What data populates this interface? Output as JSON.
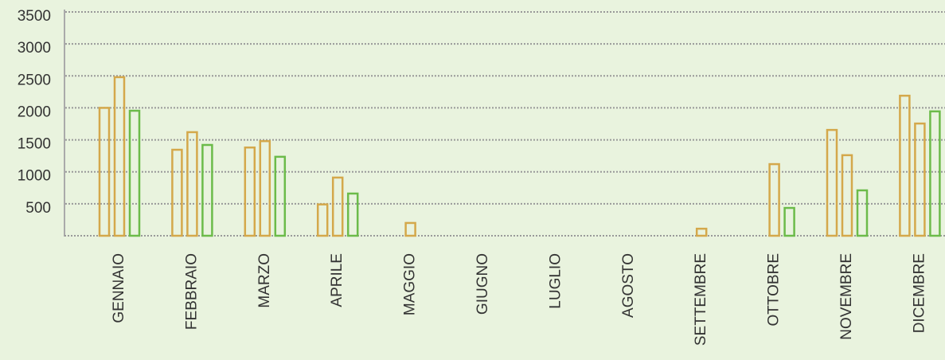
{
  "chart_data": {
    "type": "bar",
    "categories": [
      "GENNAIO",
      "FEBBRAIO",
      "MARZO",
      "APRILE",
      "MAGGIO",
      "GIUGNO",
      "LUGLIO",
      "AGOSTO",
      "SETTEMBRE",
      "OTTOBRE",
      "NOVEMBRE",
      "DICEMBRE"
    ],
    "series": [
      {
        "color": "#d4a84b",
        "values": [
          2000,
          1345,
          1380,
          490,
          null,
          null,
          null,
          null,
          null,
          null,
          1655,
          2190
        ]
      },
      {
        "color": "#d4a84b",
        "values": [
          2480,
          1620,
          1480,
          910,
          200,
          null,
          null,
          null,
          110,
          1120,
          1260,
          1755
        ]
      },
      {
        "color": "#6cbb4a",
        "values": [
          1955,
          1420,
          1235,
          660,
          null,
          null,
          null,
          null,
          null,
          435,
          710,
          1945
        ]
      }
    ],
    "ylim": [
      0,
      3500
    ],
    "yticks": [
      500,
      1000,
      1500,
      2000,
      2500,
      3000,
      3500
    ],
    "grid": true
  }
}
